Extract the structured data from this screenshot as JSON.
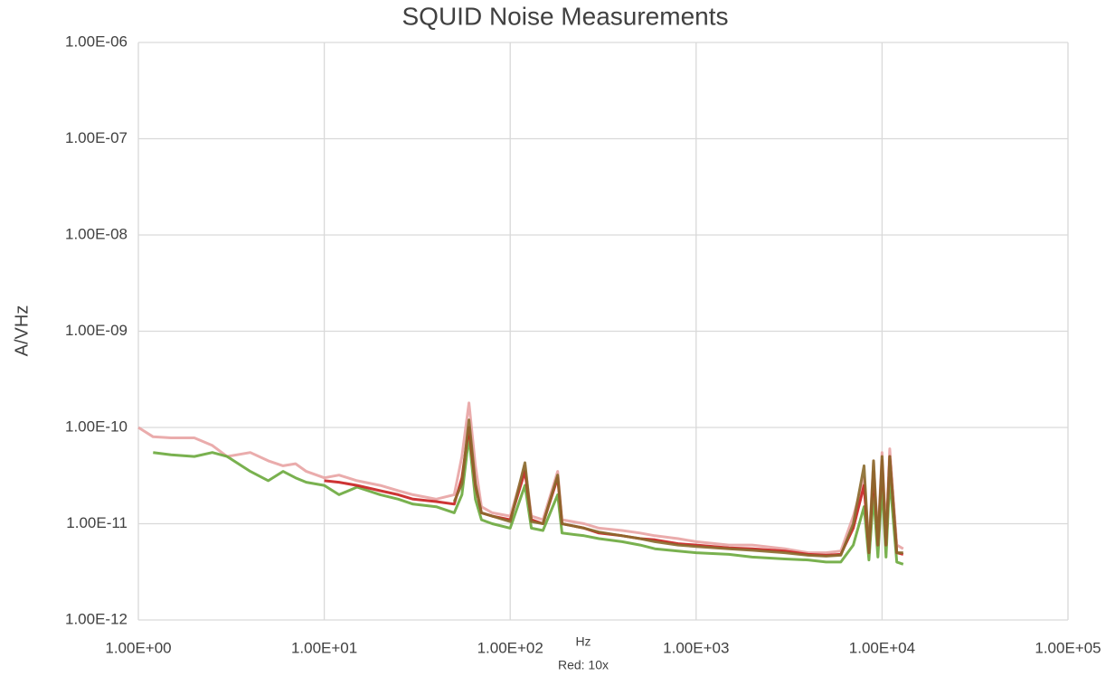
{
  "chart_data": {
    "type": "line",
    "title": "SQUID Noise Measurements",
    "xlabel": "Hz",
    "ylabel": "A/VHz",
    "annotation": "Red: 10x",
    "xscale": "log",
    "yscale": "log",
    "grid": true,
    "xlim": [
      1,
      100000
    ],
    "ylim": [
      1e-12,
      1e-06
    ],
    "xticks": [
      {
        "value": 1,
        "label": "1.00E+00"
      },
      {
        "value": 10,
        "label": "1.00E+01"
      },
      {
        "value": 100,
        "label": "1.00E+02"
      },
      {
        "value": 1000,
        "label": "1.00E+03"
      },
      {
        "value": 10000,
        "label": "1.00E+04"
      },
      {
        "value": 100000,
        "label": "1.00E+05"
      }
    ],
    "yticks": [
      {
        "value": 1e-12,
        "label": "1.00E-12"
      },
      {
        "value": 1e-11,
        "label": "1.00E-11"
      },
      {
        "value": 1e-10,
        "label": "1.00E-10"
      },
      {
        "value": 1e-09,
        "label": "1.00E-09"
      },
      {
        "value": 1e-08,
        "label": "1.00E-08"
      },
      {
        "value": 1e-07,
        "label": "1.00E-07"
      },
      {
        "value": 1e-06,
        "label": "1.00E-06"
      }
    ],
    "x": [
      1,
      1.2,
      1.5,
      2,
      2.5,
      3,
      4,
      5,
      6,
      7,
      8,
      10,
      12,
      15,
      20,
      25,
      30,
      40,
      50,
      55,
      60,
      65,
      70,
      80,
      100,
      120,
      130,
      150,
      180,
      190,
      250,
      300,
      400,
      500,
      600,
      800,
      1000,
      1500,
      2000,
      3000,
      4000,
      5000,
      6000,
      7000,
      8000,
      8500,
      9000,
      9500,
      10000,
      10500,
      11000,
      12000,
      13000
    ],
    "series": [
      {
        "color": "#e8a3a3",
        "values": [
          1e-10,
          8e-11,
          7.8e-11,
          7.8e-11,
          6.5e-11,
          5e-11,
          5.5e-11,
          4.5e-11,
          4e-11,
          4.2e-11,
          3.5e-11,
          3e-11,
          3.2e-11,
          2.8e-11,
          2.5e-11,
          2.2e-11,
          2e-11,
          1.8e-11,
          2e-11,
          5e-11,
          1.8e-10,
          4e-11,
          1.5e-11,
          1.3e-11,
          1.2e-11,
          4e-11,
          1.2e-11,
          1.1e-11,
          3.5e-11,
          1.1e-11,
          1e-11,
          9e-12,
          8.5e-12,
          8e-12,
          7.5e-12,
          7e-12,
          6.5e-12,
          6e-12,
          6e-12,
          5.5e-12,
          5e-12,
          5e-12,
          5.2e-12,
          1.2e-11,
          3e-11,
          6e-12,
          4.5e-11,
          7e-12,
          5.5e-11,
          8e-12,
          6e-11,
          6e-12,
          5.5e-12
        ]
      },
      {
        "color": "#6aa83c",
        "values": [
          null,
          5.5e-11,
          5.2e-11,
          5e-11,
          5.5e-11,
          5e-11,
          3.5e-11,
          2.8e-11,
          3.5e-11,
          3e-11,
          2.7e-11,
          2.5e-11,
          2e-11,
          2.4e-11,
          2e-11,
          1.8e-11,
          1.6e-11,
          1.5e-11,
          1.3e-11,
          2e-11,
          8e-11,
          1.8e-11,
          1.1e-11,
          1e-11,
          9e-12,
          2.5e-11,
          9e-12,
          8.5e-12,
          2e-11,
          8e-12,
          7.5e-12,
          7e-12,
          6.5e-12,
          6e-12,
          5.5e-12,
          5.2e-12,
          5e-12,
          4.8e-12,
          4.5e-12,
          4.3e-12,
          4.2e-12,
          4e-12,
          4e-12,
          6e-12,
          1.5e-11,
          4.2e-12,
          2e-11,
          4.5e-12,
          2.5e-11,
          4.5e-12,
          3e-11,
          4e-12,
          3.8e-12
        ]
      },
      {
        "color": "#c81e1e",
        "values": [
          null,
          null,
          null,
          null,
          null,
          null,
          null,
          null,
          null,
          null,
          null,
          2.8e-11,
          2.7e-11,
          2.5e-11,
          2.2e-11,
          2e-11,
          1.8e-11,
          1.7e-11,
          1.6e-11,
          3e-11,
          1e-10,
          2.5e-11,
          1.3e-11,
          1.2e-11,
          1.1e-11,
          3.5e-11,
          1.1e-11,
          1e-11,
          3e-11,
          1e-11,
          9e-12,
          8e-12,
          7.5e-12,
          7e-12,
          6.8e-12,
          6.2e-12,
          6e-12,
          5.6e-12,
          5.5e-12,
          5.2e-12,
          4.8e-12,
          4.7e-12,
          4.8e-12,
          9e-12,
          2.5e-11,
          5e-12,
          3.5e-11,
          6e-12,
          4.5e-11,
          6e-12,
          5e-11,
          5e-12,
          4.8e-12
        ]
      },
      {
        "color": "#8a6a2c",
        "values": [
          null,
          null,
          null,
          null,
          null,
          null,
          null,
          null,
          null,
          null,
          null,
          null,
          null,
          null,
          null,
          null,
          null,
          null,
          1.7e-11,
          2.6e-11,
          1.2e-10,
          2.6e-11,
          1.3e-11,
          1.2e-11,
          1.05e-11,
          4.3e-11,
          1.05e-11,
          1e-11,
          3.2e-11,
          1e-11,
          9e-12,
          8.2e-12,
          7.5e-12,
          7e-12,
          6.5e-12,
          6e-12,
          5.8e-12,
          5.5e-12,
          5.3e-12,
          5e-12,
          4.7e-12,
          4.6e-12,
          4.7e-12,
          1e-11,
          4e-11,
          5e-12,
          4.5e-11,
          6e-12,
          5e-11,
          6e-12,
          5e-11,
          5e-12,
          5e-12
        ]
      }
    ]
  }
}
